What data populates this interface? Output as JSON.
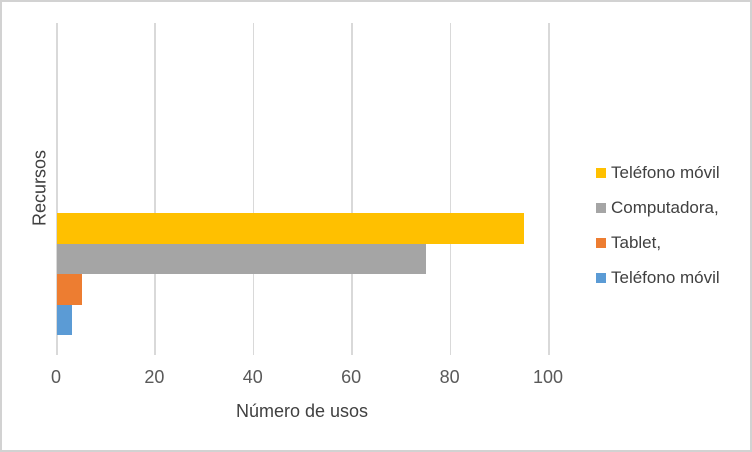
{
  "chart_data": {
    "type": "bar",
    "orientation": "horizontal",
    "categories": [
      "Recursos"
    ],
    "series": [
      {
        "name": "Teléfono móvil",
        "values": [
          95
        ],
        "color": "#FFC000"
      },
      {
        "name": "Computadora,",
        "values": [
          75
        ],
        "color": "#A5A5A5"
      },
      {
        "name": "Tablet,",
        "values": [
          5
        ],
        "color": "#ED7D31"
      },
      {
        "name": "Teléfono móvil",
        "values": [
          3
        ],
        "color": "#5B9BD5"
      }
    ],
    "xlabel": "Número de usos",
    "ylabel": "Recursos",
    "xlim": [
      0,
      100
    ],
    "x_ticks": [
      0,
      20,
      40,
      60,
      80,
      100
    ],
    "grid": true,
    "legend_position": "right"
  },
  "colors": {
    "background": "#FFFFFF",
    "frame_border": "#D2D2D2",
    "gridline": "#D9D9D9",
    "tick_text": "#595959",
    "axis_title_text": "#404040",
    "legend_text": "#404040"
  }
}
